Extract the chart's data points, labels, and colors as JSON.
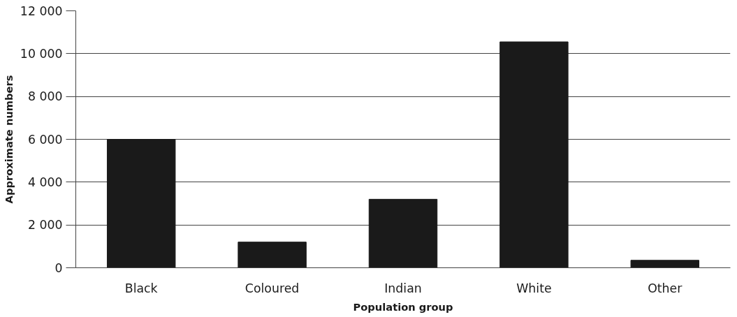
{
  "chart_data": {
    "type": "bar",
    "xlabel": "Population group",
    "ylabel": "Approximate numbers",
    "categories": [
      "Black",
      "Coloured",
      "Indian",
      "White",
      "Other"
    ],
    "values": [
      6000,
      1200,
      3200,
      10550,
      350
    ],
    "color": "#1a1a1a",
    "ylim": [
      0,
      12000
    ],
    "yticks": [
      {
        "value": 0,
        "label": "0"
      },
      {
        "value": 2000,
        "label": "2 000"
      },
      {
        "value": 4000,
        "label": "4 000"
      },
      {
        "value": 6000,
        "label": "6 000"
      },
      {
        "value": 8000,
        "label": "8 000"
      },
      {
        "value": 10000,
        "label": "10 000"
      },
      {
        "value": 12000,
        "label": "12 000"
      }
    ],
    "grid": "y"
  }
}
